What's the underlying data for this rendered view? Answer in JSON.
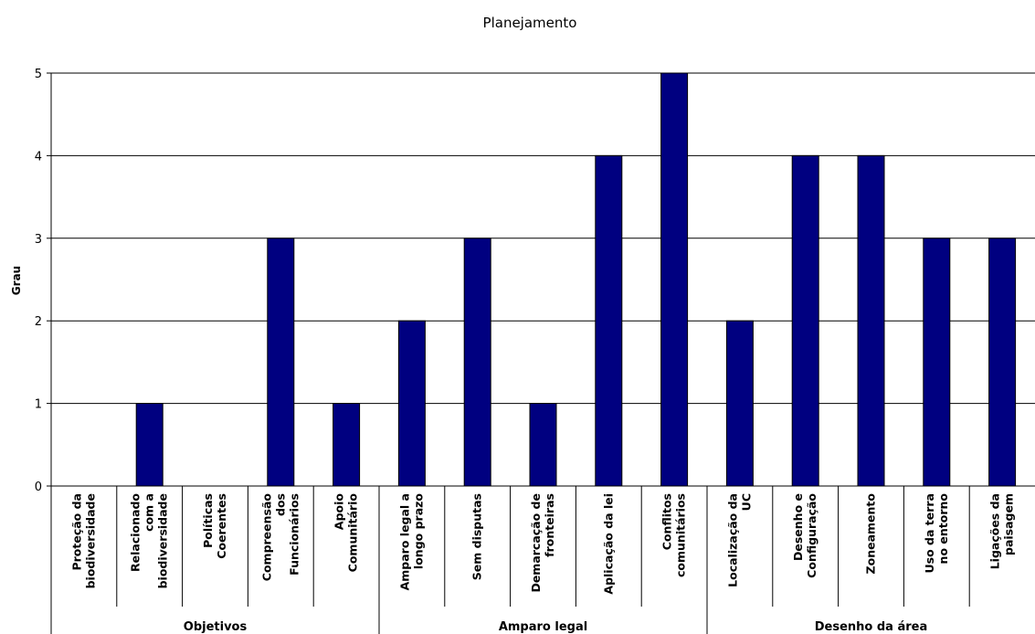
{
  "chart_data": {
    "type": "bar",
    "title": "Planejamento",
    "xlabel": "",
    "ylabel": "Grau",
    "ylim": [
      0,
      5
    ],
    "yticks": [
      0,
      1,
      2,
      3,
      4,
      5
    ],
    "grid": true,
    "bar_color": "#000080",
    "categories": [
      {
        "lines": [
          "Proteção da",
          "biodiversidade"
        ],
        "value": 0
      },
      {
        "lines": [
          "Relacionado",
          "com a",
          "biodiversidade"
        ],
        "value": 1
      },
      {
        "lines": [
          "Políticas",
          "Coerentes"
        ],
        "value": 0
      },
      {
        "lines": [
          "Compreensão",
          "dos",
          "Funcionários"
        ],
        "value": 3
      },
      {
        "lines": [
          "Apoio",
          "Comunitário"
        ],
        "value": 1
      },
      {
        "lines": [
          "Amparo legal a",
          "longo prazo"
        ],
        "value": 2
      },
      {
        "lines": [
          "Sem disputas"
        ],
        "value": 3
      },
      {
        "lines": [
          "Demarcação de",
          "fronteiras"
        ],
        "value": 1
      },
      {
        "lines": [
          "Aplicação da lei"
        ],
        "value": 4
      },
      {
        "lines": [
          "Conflitos",
          "comunitários"
        ],
        "value": 5
      },
      {
        "lines": [
          "Localização da",
          "UC"
        ],
        "value": 2
      },
      {
        "lines": [
          "Desenho e",
          "Configuração"
        ],
        "value": 4
      },
      {
        "lines": [
          "Zoneamento"
        ],
        "value": 4
      },
      {
        "lines": [
          "Uso da terra",
          "no entorno"
        ],
        "value": 3
      },
      {
        "lines": [
          "Ligações da",
          "paisagem"
        ],
        "value": 3
      }
    ],
    "groups": [
      {
        "label": "Objetivos",
        "count": 5
      },
      {
        "label": "Amparo legal",
        "count": 5
      },
      {
        "label": "Desenho da área",
        "count": 5
      }
    ]
  }
}
